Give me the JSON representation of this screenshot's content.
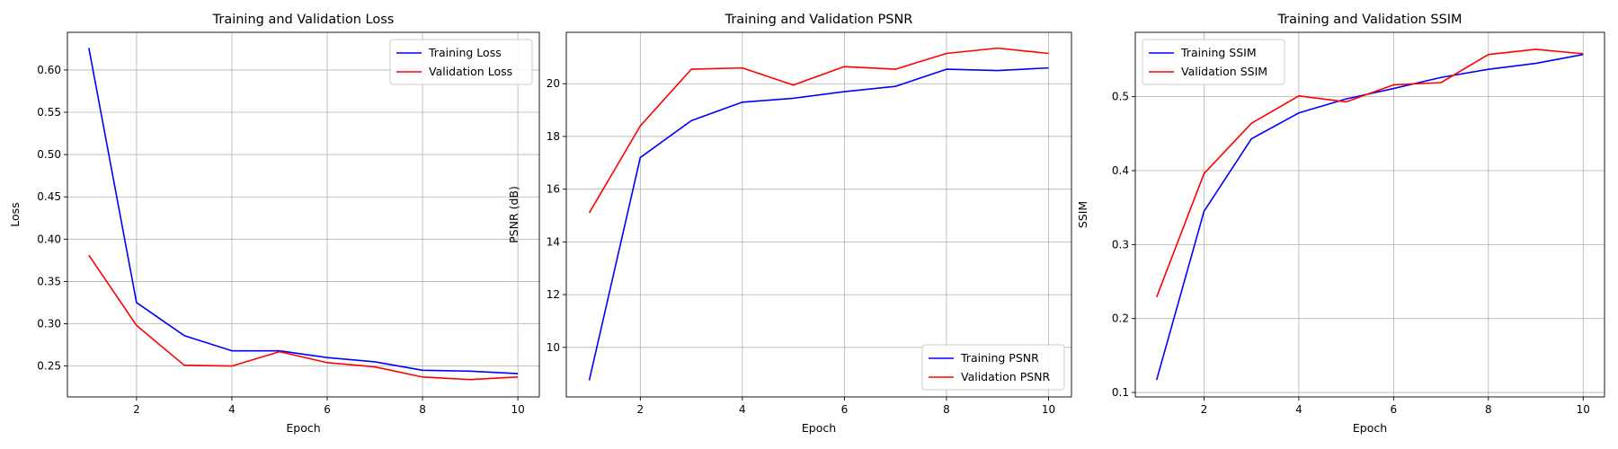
{
  "colors": {
    "training": "#0000ff",
    "validation": "#ff0000",
    "grid": "#b0b0b0",
    "axis": "#000000"
  },
  "chart_data": [
    {
      "type": "line",
      "title": "Training and Validation Loss",
      "xlabel": "Epoch",
      "ylabel": "Loss",
      "x": [
        1,
        2,
        3,
        4,
        5,
        6,
        7,
        8,
        9,
        10
      ],
      "xlim": [
        0.55,
        10.45
      ],
      "ylim": [
        0.2135,
        0.6445
      ],
      "xticks": [
        2,
        4,
        6,
        8,
        10
      ],
      "xtick_labels": [
        "2",
        "4",
        "6",
        "8",
        "10"
      ],
      "yticks": [
        0.25,
        0.3,
        0.35,
        0.4,
        0.45,
        0.5,
        0.55,
        0.6
      ],
      "ytick_labels": [
        "0.25",
        "0.30",
        "0.35",
        "0.40",
        "0.45",
        "0.50",
        "0.55",
        "0.60"
      ],
      "grid": true,
      "legend_position": "top-right",
      "series": [
        {
          "name": "Training Loss",
          "color": "#0000ff",
          "values": [
            0.626,
            0.325,
            0.286,
            0.268,
            0.268,
            0.26,
            0.255,
            0.245,
            0.244,
            0.241
          ]
        },
        {
          "name": "Validation Loss",
          "color": "#ff0000",
          "values": [
            0.381,
            0.298,
            0.251,
            0.25,
            0.267,
            0.254,
            0.249,
            0.237,
            0.234,
            0.237
          ]
        }
      ]
    },
    {
      "type": "line",
      "title": "Training and Validation PSNR",
      "xlabel": "Epoch",
      "ylabel": "PSNR (dB)",
      "x": [
        1,
        2,
        3,
        4,
        5,
        6,
        7,
        8,
        9,
        10
      ],
      "xlim": [
        0.55,
        10.45
      ],
      "ylim": [
        8.12,
        21.95
      ],
      "xticks": [
        2,
        4,
        6,
        8,
        10
      ],
      "xtick_labels": [
        "2",
        "4",
        "6",
        "8",
        "10"
      ],
      "yticks": [
        10,
        12,
        14,
        16,
        18,
        20
      ],
      "ytick_labels": [
        "10",
        "12",
        "14",
        "16",
        "18",
        "20"
      ],
      "grid": true,
      "legend_position": "bottom-right",
      "series": [
        {
          "name": "Training PSNR",
          "color": "#0000ff",
          "values": [
            8.75,
            17.2,
            18.6,
            19.3,
            19.45,
            19.7,
            19.9,
            20.55,
            20.5,
            20.6
          ]
        },
        {
          "name": "Validation PSNR",
          "color": "#ff0000",
          "values": [
            15.1,
            18.4,
            20.55,
            20.6,
            19.95,
            20.65,
            20.55,
            21.15,
            21.35,
            21.15
          ]
        }
      ]
    },
    {
      "type": "line",
      "title": "Training and Validation SSIM",
      "xlabel": "Epoch",
      "ylabel": "SSIM",
      "x": [
        1,
        2,
        3,
        4,
        5,
        6,
        7,
        8,
        9,
        10
      ],
      "xlim": [
        0.55,
        10.45
      ],
      "ylim": [
        0.094,
        0.587
      ],
      "xticks": [
        2,
        4,
        6,
        8,
        10
      ],
      "xtick_labels": [
        "2",
        "4",
        "6",
        "8",
        "10"
      ],
      "yticks": [
        0.1,
        0.2,
        0.3,
        0.4,
        0.5
      ],
      "ytick_labels": [
        "0.1",
        "0.2",
        "0.3",
        "0.4",
        "0.5"
      ],
      "grid": true,
      "legend_position": "top-left",
      "series": [
        {
          "name": "Training SSIM",
          "color": "#0000ff",
          "values": [
            0.117,
            0.345,
            0.443,
            0.478,
            0.497,
            0.511,
            0.526,
            0.537,
            0.545,
            0.557
          ]
        },
        {
          "name": "Validation SSIM",
          "color": "#ff0000",
          "values": [
            0.229,
            0.396,
            0.464,
            0.501,
            0.493,
            0.516,
            0.519,
            0.557,
            0.564,
            0.558
          ]
        }
      ]
    }
  ]
}
